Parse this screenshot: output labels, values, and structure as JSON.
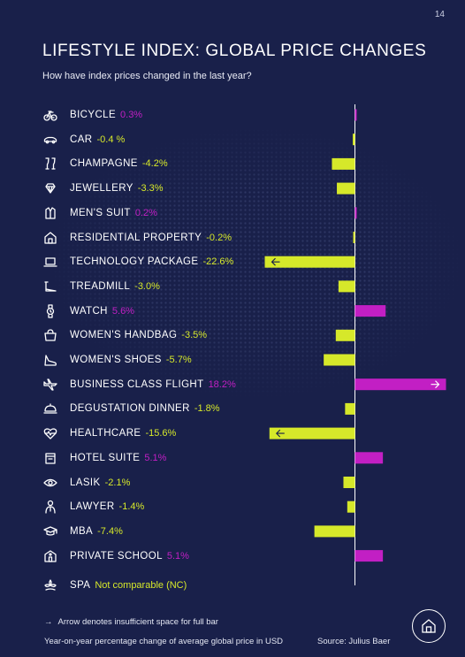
{
  "page_number": "14",
  "title": "LIFESTYLE INDEX: GLOBAL PRICE CHANGES",
  "subtitle": "How have index prices changed in the last year?",
  "footnote_arrow": "→",
  "footnote": "Arrow denotes insufficient space for full bar",
  "axis_caption": "Year-on-year percentage change of average global price in USD",
  "source": "Source: Julius Baer",
  "colors": {
    "positive": "#c21fc4",
    "negative": "#d6e82a",
    "background": "#19204a"
  },
  "chart_data": {
    "type": "bar",
    "orientation": "horizontal",
    "unit": "%",
    "xlim": [
      -18,
      18
    ],
    "categories": [
      "BICYCLE",
      "CAR",
      "CHAMPAGNE",
      "JEWELLERY",
      "MEN'S SUIT",
      "RESIDENTIAL PROPERTY",
      "TECHNOLOGY PACKAGE",
      "TREADMILL",
      "WATCH",
      "WOMEN'S HANDBAG",
      "WOMEN'S SHOES",
      "BUSINESS CLASS FLIGHT",
      "DEGUSTATION DINNER",
      "HEALTHCARE",
      "HOTEL SUITE",
      "LASIK",
      "LAWYER",
      "MBA",
      "PRIVATE SCHOOL",
      "SPA"
    ],
    "values": [
      0.3,
      -0.4,
      -4.2,
      -3.3,
      0.2,
      -0.2,
      -22.6,
      -3.0,
      5.6,
      -3.5,
      -5.7,
      18.2,
      -1.8,
      -15.6,
      5.1,
      -2.1,
      -1.4,
      -7.4,
      5.1,
      null
    ],
    "value_labels": [
      "0.3%",
      "-0.4 %",
      "-4.2%",
      "-3.3%",
      "0.2%",
      "-0.2%",
      "-22.6%",
      "-3.0%",
      "5.6%",
      "-3.5%",
      "-5.7%",
      "18.2%",
      "-1.8%",
      "-15.6%",
      "5.1%",
      "-2.1%",
      "-1.4%",
      "-7.4%",
      "5.1%",
      "Not comparable (NC)"
    ],
    "truncated": [
      false,
      false,
      false,
      false,
      false,
      false,
      true,
      false,
      false,
      false,
      false,
      true,
      false,
      true,
      false,
      false,
      false,
      false,
      false,
      false
    ],
    "icons": [
      "bicycle-icon",
      "car-icon",
      "champagne-icon",
      "jewellery-icon",
      "suit-icon",
      "house-icon",
      "laptop-icon",
      "treadmill-icon",
      "watch-icon",
      "handbag-icon",
      "shoe-icon",
      "plane-icon",
      "cloche-icon",
      "heart-pulse-icon",
      "hotel-icon",
      "eye-icon",
      "lawyer-icon",
      "graduation-cap-icon",
      "school-icon",
      "spa-icon"
    ]
  }
}
